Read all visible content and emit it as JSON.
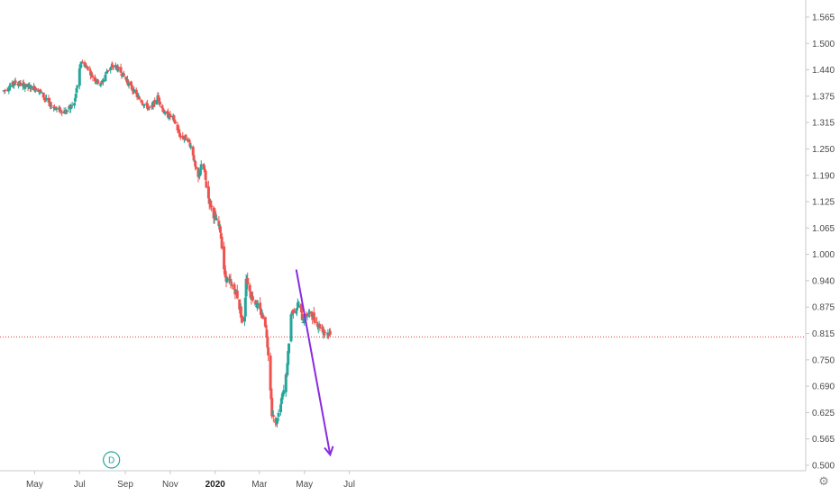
{
  "chart_data": {
    "type": "candlestick",
    "interval_badge": "D",
    "y_ticks": [
      "1.565",
      "1.500",
      "1.440",
      "1.375",
      "1.315",
      "1.250",
      "1.190",
      "1.125",
      "1.065",
      "1.000",
      "0.940",
      "0.875",
      "0.815",
      "0.750",
      "0.690",
      "0.625",
      "0.565",
      "0.500"
    ],
    "x_ticks": [
      {
        "label": "May",
        "date": "2019-05-01"
      },
      {
        "label": "Jul",
        "date": "2019-07-01"
      },
      {
        "label": "Sep",
        "date": "2019-09-01"
      },
      {
        "label": "Nov",
        "date": "2019-11-01"
      },
      {
        "label": "2020",
        "date": "2020-01-01",
        "bold": true
      },
      {
        "label": "Mar",
        "date": "2020-03-01"
      },
      {
        "label": "May",
        "date": "2020-05-01"
      },
      {
        "label": "Jul",
        "date": "2020-07-01"
      }
    ],
    "reference_line": {
      "value": 0.805,
      "color": "#e53935",
      "style": "dotted"
    },
    "trend_arrow": {
      "from": {
        "date": "2020-04-20",
        "value": 0.965
      },
      "to": {
        "date": "2020-06-05",
        "value": 0.525
      },
      "color": "#8a2be2"
    },
    "colors": {
      "up": "#26a69a",
      "down": "#ef5350"
    },
    "anchors": [
      [
        "2019-03-20",
        1.39
      ],
      [
        "2019-04-05",
        1.41
      ],
      [
        "2019-04-20",
        1.4
      ],
      [
        "2019-05-05",
        1.395
      ],
      [
        "2019-05-20",
        1.36
      ],
      [
        "2019-06-01",
        1.345
      ],
      [
        "2019-06-12",
        1.34
      ],
      [
        "2019-06-24",
        1.36
      ],
      [
        "2019-07-03",
        1.46
      ],
      [
        "2019-07-12",
        1.445
      ],
      [
        "2019-07-20",
        1.42
      ],
      [
        "2019-07-30",
        1.405
      ],
      [
        "2019-08-08",
        1.44
      ],
      [
        "2019-08-18",
        1.45
      ],
      [
        "2019-08-28",
        1.43
      ],
      [
        "2019-09-08",
        1.4
      ],
      [
        "2019-09-20",
        1.37
      ],
      [
        "2019-10-05",
        1.345
      ],
      [
        "2019-10-15",
        1.375
      ],
      [
        "2019-10-25",
        1.335
      ],
      [
        "2019-11-05",
        1.325
      ],
      [
        "2019-11-15",
        1.28
      ],
      [
        "2019-11-25",
        1.275
      ],
      [
        "2019-12-01",
        1.25
      ],
      [
        "2019-12-08",
        1.175
      ],
      [
        "2019-12-15",
        1.225
      ],
      [
        "2019-12-22",
        1.14
      ],
      [
        "2019-12-31",
        1.09
      ],
      [
        "2020-01-08",
        1.06
      ],
      [
        "2020-01-14",
        0.95
      ],
      [
        "2020-01-22",
        0.93
      ],
      [
        "2020-01-30",
        0.91
      ],
      [
        "2020-02-06",
        0.85
      ],
      [
        "2020-02-09",
        0.81
      ],
      [
        "2020-02-12",
        0.95
      ],
      [
        "2020-02-18",
        0.905
      ],
      [
        "2020-02-24",
        0.89
      ],
      [
        "2020-03-02",
        0.865
      ],
      [
        "2020-03-08",
        0.85
      ],
      [
        "2020-03-11",
        0.81
      ],
      [
        "2020-03-14",
        0.745
      ],
      [
        "2020-03-18",
        0.625
      ],
      [
        "2020-03-23",
        0.595
      ],
      [
        "2020-03-29",
        0.635
      ],
      [
        "2020-04-04",
        0.685
      ],
      [
        "2020-04-08",
        0.735
      ],
      [
        "2020-04-12",
        0.855
      ],
      [
        "2020-04-18",
        0.875
      ],
      [
        "2020-04-23",
        0.88
      ],
      [
        "2020-04-29",
        0.845
      ],
      [
        "2020-05-05",
        0.86
      ],
      [
        "2020-05-12",
        0.855
      ],
      [
        "2020-05-20",
        0.835
      ],
      [
        "2020-05-27",
        0.82
      ],
      [
        "2020-06-02",
        0.815
      ],
      [
        "2020-06-05",
        0.808
      ]
    ]
  }
}
